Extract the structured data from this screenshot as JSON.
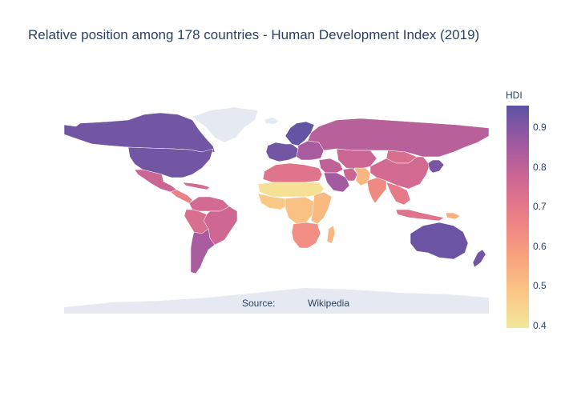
{
  "title": "Relative position among 178 countries - Human Development Index (2019)",
  "source": {
    "label": "Source:",
    "value": "Wikipedia"
  },
  "colorbar": {
    "title": "HDI",
    "range": [
      0.4,
      0.96
    ],
    "ticks": [
      "0.9",
      "0.8",
      "0.7",
      "0.6",
      "0.5",
      "0.4"
    ],
    "colorscale": [
      "#f3e79b",
      "#fac484",
      "#f8a07e",
      "#eb7f86",
      "#ce6693",
      "#a059a0",
      "#5c53a5"
    ]
  },
  "colors": {
    "land_no_data": "#e4e9f2",
    "background": "#ffffff",
    "text": "#2a3f5f"
  },
  "chart_data": {
    "type": "choropleth",
    "title": "Relative position among 178 countries - Human Development Index (2019)",
    "colorbar_title": "HDI",
    "color_range": [
      0.4,
      0.96
    ],
    "regions": [
      {
        "name": "Canada",
        "value": 0.93
      },
      {
        "name": "United States",
        "value": 0.93
      },
      {
        "name": "Mexico",
        "value": 0.78
      },
      {
        "name": "Central America",
        "value": 0.68
      },
      {
        "name": "Caribbean",
        "value": 0.75
      },
      {
        "name": "Colombia/Venezuela",
        "value": 0.76
      },
      {
        "name": "Brazil",
        "value": 0.77
      },
      {
        "name": "Peru/Bolivia",
        "value": 0.74
      },
      {
        "name": "Chile/Argentina",
        "value": 0.85
      },
      {
        "name": "Scandinavia",
        "value": 0.95
      },
      {
        "name": "Western Europe",
        "value": 0.93
      },
      {
        "name": "Eastern Europe",
        "value": 0.85
      },
      {
        "name": "Russia",
        "value": 0.82
      },
      {
        "name": "Kazakhstan/Central Asia",
        "value": 0.78
      },
      {
        "name": "Mongolia",
        "value": 0.74
      },
      {
        "name": "China",
        "value": 0.76
      },
      {
        "name": "Japan/Korea",
        "value": 0.92
      },
      {
        "name": "North Africa",
        "value": 0.72
      },
      {
        "name": "Middle East",
        "value": 0.8
      },
      {
        "name": "Saudi Arabia/Gulf",
        "value": 0.86
      },
      {
        "name": "Iran",
        "value": 0.78
      },
      {
        "name": "Afghanistan/Pakistan",
        "value": 0.53
      },
      {
        "name": "India",
        "value": 0.65
      },
      {
        "name": "Southeast Asia",
        "value": 0.7
      },
      {
        "name": "Indonesia",
        "value": 0.72
      },
      {
        "name": "Papua New Guinea",
        "value": 0.55
      },
      {
        "name": "Sahel",
        "value": 0.42
      },
      {
        "name": "West Africa",
        "value": 0.48
      },
      {
        "name": "Central Africa",
        "value": 0.5
      },
      {
        "name": "East Africa",
        "value": 0.52
      },
      {
        "name": "Southern Africa",
        "value": 0.64
      },
      {
        "name": "Madagascar",
        "value": 0.53
      },
      {
        "name": "Australia",
        "value": 0.94
      },
      {
        "name": "New Zealand",
        "value": 0.93
      }
    ]
  }
}
